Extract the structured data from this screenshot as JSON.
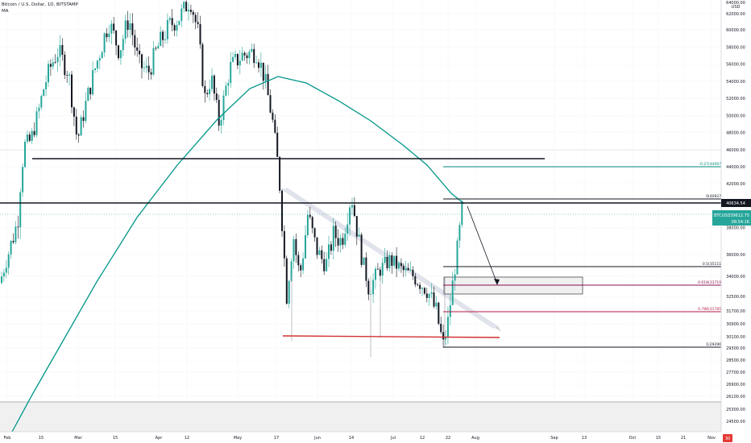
{
  "chart_title": "Bitcoin / U.S. Dollar, 1D, BITSTAMP",
  "indicator_label": "MA",
  "currency": "USD",
  "top_price_label": "64000.00",
  "price_axis": {
    "ticks": [
      "62000.00",
      "60000.00",
      "58000.00",
      "56000.00",
      "54000.00",
      "52000.00",
      "50000.00",
      "48000.00",
      "46000.00",
      "44000.00",
      "42000.00",
      "40000.00",
      "38000.00",
      "36000.00",
      "34000.00",
      "32500.00",
      "31700.00",
      "30900.00",
      "30100.00",
      "29300.00",
      "28500.00",
      "27700.00",
      "26900.00",
      "26100.00",
      "25300.00",
      "24500.00"
    ]
  },
  "price_badges": {
    "resistance": {
      "text": "40634.54",
      "color": "#131722"
    },
    "current_symbol": "BTCUSD",
    "current_price": "39612.75",
    "countdown": "08:54:16",
    "current_color": "#26a69a"
  },
  "time_axis": {
    "labels": [
      "Feb",
      "15",
      "Mar",
      "15",
      "Apr",
      "12",
      "May",
      "17",
      "Jun",
      "14",
      "Jul",
      "12",
      "22",
      "Aug",
      "Sep",
      "13",
      "Oct",
      "15",
      "21",
      "Nov"
    ],
    "end_badge": "30"
  },
  "fib_levels": [
    {
      "label": "-0.27(44067.96)",
      "color": "#00897b"
    },
    {
      "label": "0(40927.93)",
      "color": "#131722"
    },
    {
      "label": "0.5(35111.96)",
      "color": "#131722"
    },
    {
      "label": "0.618(33719.49)",
      "color": "#880e4f"
    },
    {
      "label": "0.786(31785.45)",
      "color": "#b71c4a"
    },
    {
      "label": "1(29296.28)",
      "color": "#131722"
    }
  ],
  "colors": {
    "bull": "#26a69a",
    "bear": "#131722",
    "ma": "#009688",
    "support_red": "#d32f2f",
    "channel": "#d1d4dc"
  },
  "chart_data": {
    "type": "candlestick",
    "title": "Bitcoin / U.S. Dollar, 1D, BITSTAMP",
    "indicator": "MA",
    "y_unit": "USD",
    "ylim": [
      23500,
      64500
    ],
    "xlim_labels": [
      "Feb",
      "Nov"
    ],
    "candles_approx": [
      {
        "date": "Feb 1",
        "close": 33500
      },
      {
        "date": "Feb 9",
        "close": 46500
      },
      {
        "date": "Feb 21",
        "close": 57000
      },
      {
        "date": "Mar 13",
        "close": 61000
      },
      {
        "date": "Apr 14",
        "close": 64000
      },
      {
        "date": "Apr 25",
        "close": 49000
      },
      {
        "date": "May 9",
        "close": 58000
      },
      {
        "date": "May 19",
        "close": 37000
      },
      {
        "date": "Jun 14",
        "close": 40500
      },
      {
        "date": "Jul 20",
        "close": 29800
      },
      {
        "date": "Jul 26",
        "close": 39600
      }
    ],
    "horizontal_levels": [
      45000,
      40634.54,
      29300
    ]
  }
}
